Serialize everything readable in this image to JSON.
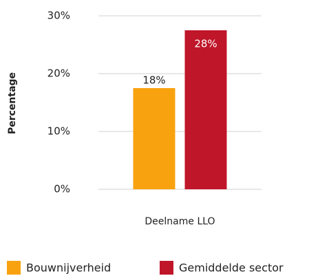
{
  "chart_data": {
    "type": "bar",
    "ylabel": "Percentage",
    "categories": [
      "Deelname LLO"
    ],
    "series": [
      {
        "name": "Bouwnijverheid",
        "color": "#f9a20f",
        "values": [
          17.5
        ],
        "value_labels": [
          "18%"
        ]
      },
      {
        "name": "Gemiddelde sector",
        "color": "#c0162a",
        "values": [
          27.5
        ],
        "value_labels": [
          "28%"
        ]
      }
    ],
    "ylim": [
      0,
      30
    ],
    "yticks": [
      {
        "value": 0,
        "label": "0%"
      },
      {
        "value": 10,
        "label": "10%"
      },
      {
        "value": 20,
        "label": "20%"
      },
      {
        "value": 30,
        "label": "30%"
      }
    ],
    "grid": true,
    "legend": "bottom"
  }
}
